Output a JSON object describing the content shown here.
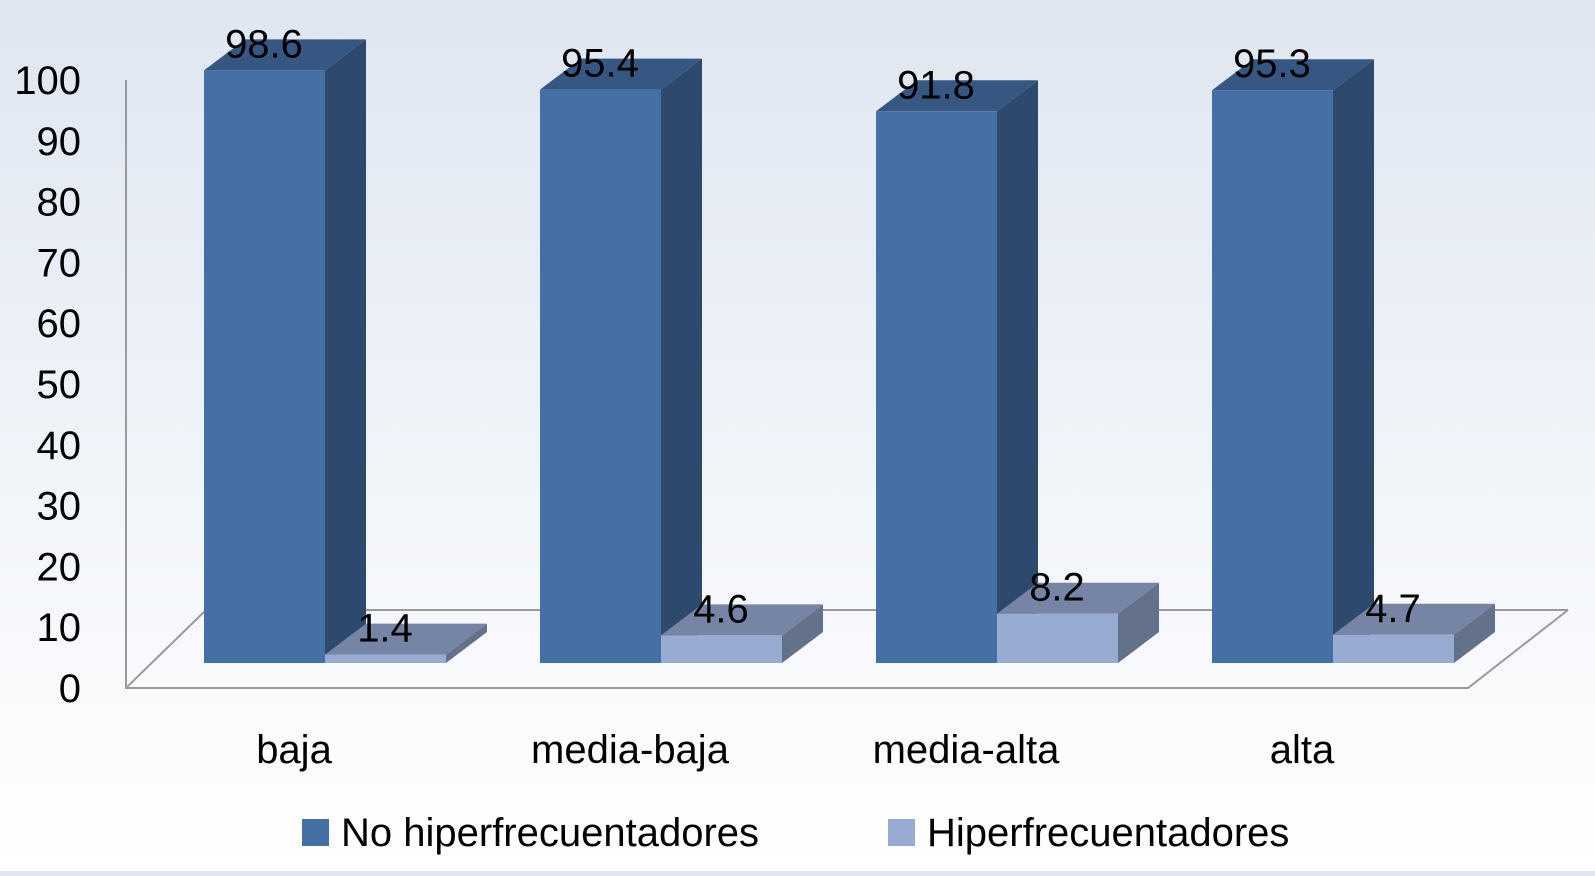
{
  "chart_data": {
    "type": "bar",
    "categories": [
      "baja",
      "media-baja",
      "media-alta",
      "alta"
    ],
    "series": [
      {
        "name": "No hiperfrecuentadores",
        "values": [
          98.6,
          95.4,
          91.8,
          95.3
        ],
        "color": "#4470a6"
      },
      {
        "name": "Hiperfrecuentadores",
        "values": [
          1.4,
          4.6,
          8.2,
          4.7
        ],
        "color": "#97abd3"
      }
    ],
    "y_ticks": [
      "0",
      "10",
      "20",
      "30",
      "40",
      "50",
      "60",
      "70",
      "80",
      "90",
      "100"
    ],
    "ylim": [
      0,
      100
    ],
    "legend_position": "bottom",
    "grid": false,
    "style": "3d-clustered-column"
  }
}
